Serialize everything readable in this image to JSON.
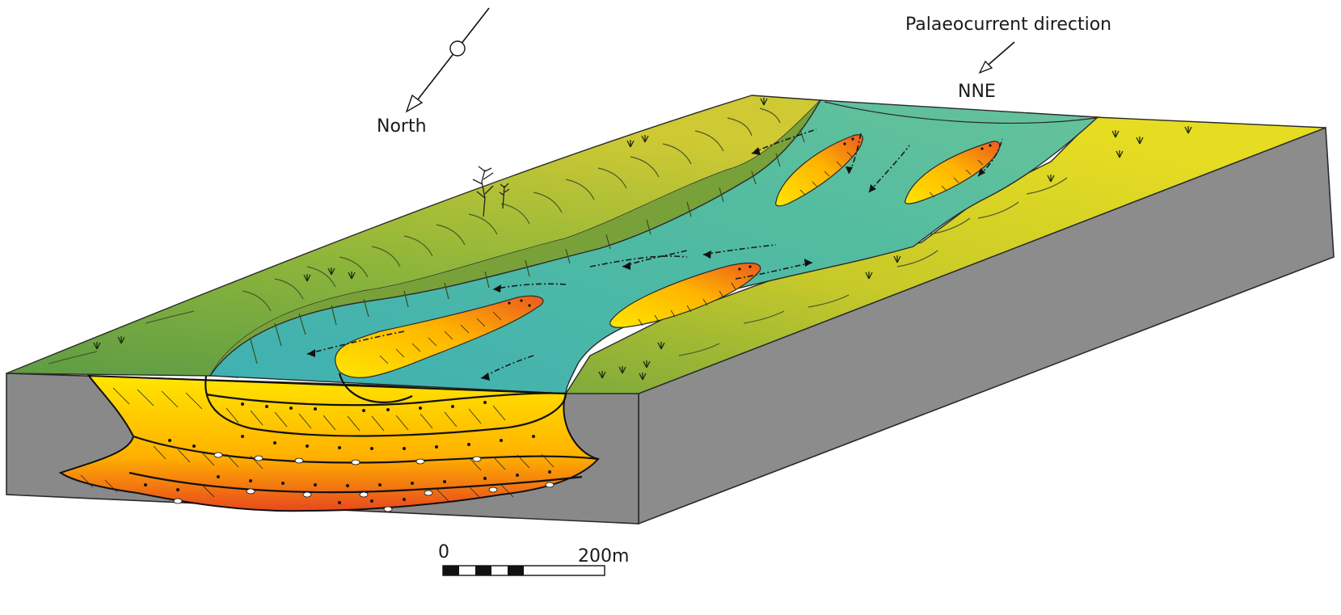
{
  "labels": {
    "north": "North",
    "palaeocurrent": "Palaeocurrent direction",
    "current_dir": "NNE"
  },
  "scale_bar": {
    "start_label": "0",
    "end_label": "200m"
  },
  "colors": {
    "block_side": "#8f8f8f",
    "block_front": "#858585",
    "channel_water": "#4db3a8",
    "floodplain_green": "#79a83a",
    "floodplain_yellow": "#d9d226",
    "bar_yellow": "#ffe600",
    "bar_orange": "#f0641e"
  },
  "icons": [
    "north-arrow-icon",
    "current-arrow-icon",
    "tree-icon",
    "grass-tuft-icon"
  ]
}
